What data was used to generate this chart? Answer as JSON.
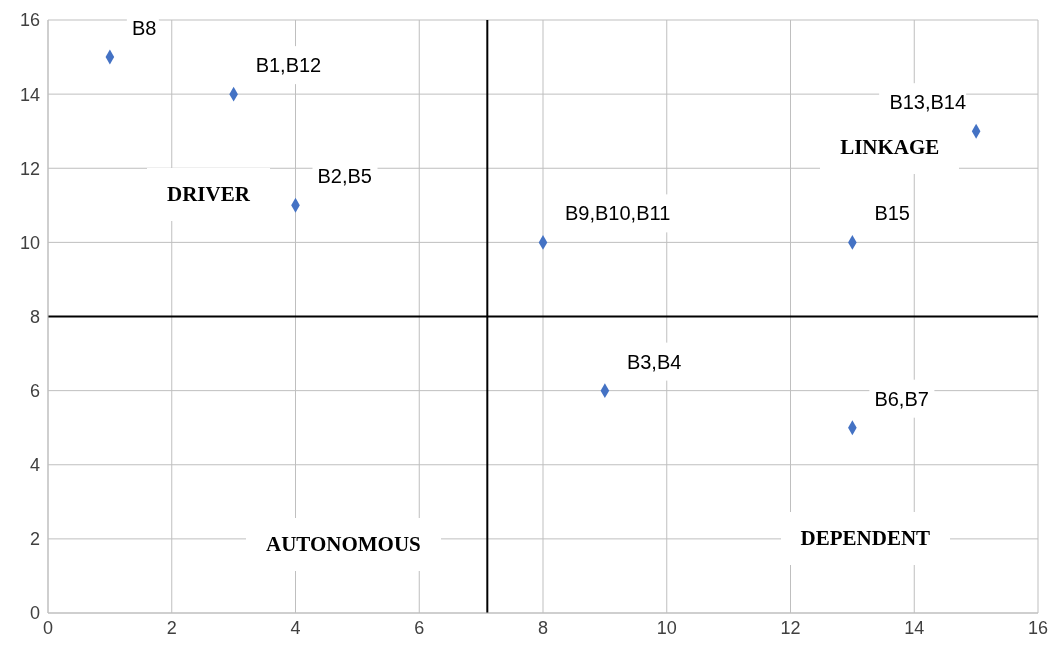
{
  "chart_data": {
    "type": "scatter",
    "x": [
      1,
      3,
      4,
      8,
      13,
      15,
      9,
      13
    ],
    "values": [
      15,
      14,
      11,
      10,
      10,
      13,
      6,
      5
    ],
    "color": "#4472c4",
    "marker": "diamond",
    "xlim": [
      0,
      16
    ],
    "xticks": [
      0,
      2,
      4,
      6,
      8,
      10,
      12,
      14,
      16
    ],
    "ylim": [
      0,
      16
    ],
    "yticks": [
      0,
      2,
      4,
      6,
      8,
      10,
      12,
      14,
      16
    ],
    "grid": true,
    "ref_lines": [
      {
        "axis": "x",
        "value": 7.1,
        "color": "#000000"
      },
      {
        "axis": "y",
        "value": 8,
        "color": "#000000"
      }
    ],
    "annotations": [
      {
        "text": "B8",
        "x": 1,
        "y": 15
      },
      {
        "text": "B1,B12",
        "x": 3,
        "y": 14
      },
      {
        "text": "B2,B5",
        "x": 4,
        "y": 11
      },
      {
        "text": "B9,B10,B11",
        "x": 8,
        "y": 10
      },
      {
        "text": "B15",
        "x": 13,
        "y": 10
      },
      {
        "text": "B13,B14",
        "x": 15,
        "y": 13
      },
      {
        "text": "B3,B4",
        "x": 9,
        "y": 6
      },
      {
        "text": "B6,B7",
        "x": 13,
        "y": 5
      },
      "DRIVER",
      "LINKAGE",
      "AUTONOMOUS",
      "DEPENDENT"
    ]
  }
}
